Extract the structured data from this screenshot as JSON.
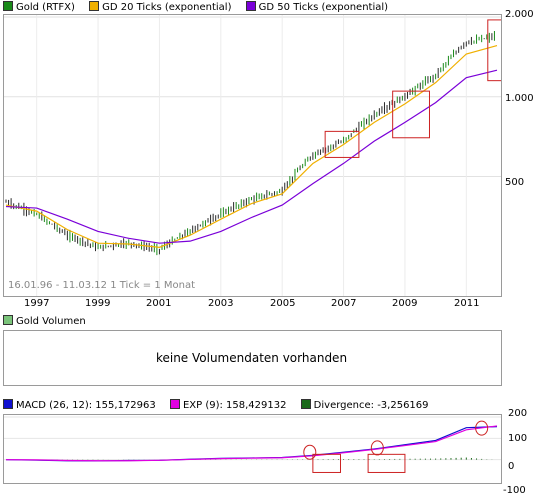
{
  "legend_top": [
    {
      "label": "Gold (RTFX)",
      "color": "#1a8a1a"
    },
    {
      "label": "GD 20 Ticks (exponential)",
      "color": "#f0b000"
    },
    {
      "label": "GD 50 Ticks (exponential)",
      "color": "#7a00d8"
    }
  ],
  "price_axis": [
    "2.000",
    "1.000",
    "500"
  ],
  "x_axis": [
    "1997",
    "1999",
    "2001",
    "2003",
    "2005",
    "2007",
    "2009",
    "2011"
  ],
  "info_text": "16.01.96 - 11.03.12   1 Tick = 1 Monat",
  "volume": {
    "legend": {
      "label": "Gold Volumen",
      "color": "#7ac47a"
    },
    "message": "keine Volumendaten vorhanden"
  },
  "macd": {
    "legend": [
      {
        "label": "MACD (26, 12): 155,172963",
        "color": "#1010d0"
      },
      {
        "label": "EXP (9): 158,429132",
        "color": "#e000e0"
      },
      {
        "label": "Divergence: -3,256169",
        "color": "#1a6a1a"
      }
    ],
    "axis": [
      "200",
      "100",
      "0",
      "-100"
    ]
  },
  "chart_data": [
    {
      "type": "line",
      "title": "Gold (RTFX)",
      "scale": "log",
      "ylim": [
        180,
        2000
      ],
      "x": [
        "1996",
        "1997",
        "1998",
        "1999",
        "2000",
        "2001",
        "2002",
        "2003",
        "2004",
        "2005",
        "2006",
        "2007",
        "2008",
        "2009",
        "2010",
        "2011",
        "2012"
      ],
      "series": [
        {
          "name": "Gold (RTFX)",
          "values": [
            400,
            360,
            300,
            270,
            280,
            265,
            310,
            360,
            410,
            440,
            600,
            680,
            850,
            1000,
            1200,
            1600,
            1700
          ]
        },
        {
          "name": "GD 20 Ticks (exponential)",
          "values": [
            390,
            370,
            315,
            280,
            278,
            270,
            300,
            345,
            395,
            430,
            560,
            660,
            800,
            940,
            1130,
            1450,
            1560
          ]
        },
        {
          "name": "GD 50 Ticks (exponential)",
          "values": [
            385,
            380,
            345,
            310,
            292,
            280,
            285,
            310,
            350,
            390,
            470,
            560,
            680,
            800,
            950,
            1180,
            1260
          ]
        }
      ],
      "grid": true
    },
    {
      "type": "line",
      "title": "MACD (26, 12)",
      "ylim": [
        -100,
        200
      ],
      "x": [
        "1996",
        "1997",
        "1998",
        "1999",
        "2000",
        "2001",
        "2002",
        "2003",
        "2004",
        "2005",
        "2006",
        "2007",
        "2008",
        "2009",
        "2010",
        "2011",
        "2012"
      ],
      "series": [
        {
          "name": "MACD (26, 12)",
          "values": [
            0,
            -2,
            -5,
            -6,
            -4,
            -3,
            2,
            6,
            8,
            10,
            20,
            35,
            50,
            70,
            90,
            150,
            155
          ]
        },
        {
          "name": "EXP (9)",
          "values": [
            0,
            -1,
            -4,
            -5,
            -5,
            -3,
            1,
            5,
            7,
            9,
            18,
            32,
            48,
            66,
            85,
            140,
            158
          ]
        },
        {
          "name": "Divergence",
          "values": [
            0,
            -1,
            -1,
            -1,
            1,
            0,
            1,
            1,
            1,
            1,
            2,
            3,
            2,
            4,
            5,
            10,
            -3
          ]
        }
      ],
      "grid": true
    }
  ]
}
